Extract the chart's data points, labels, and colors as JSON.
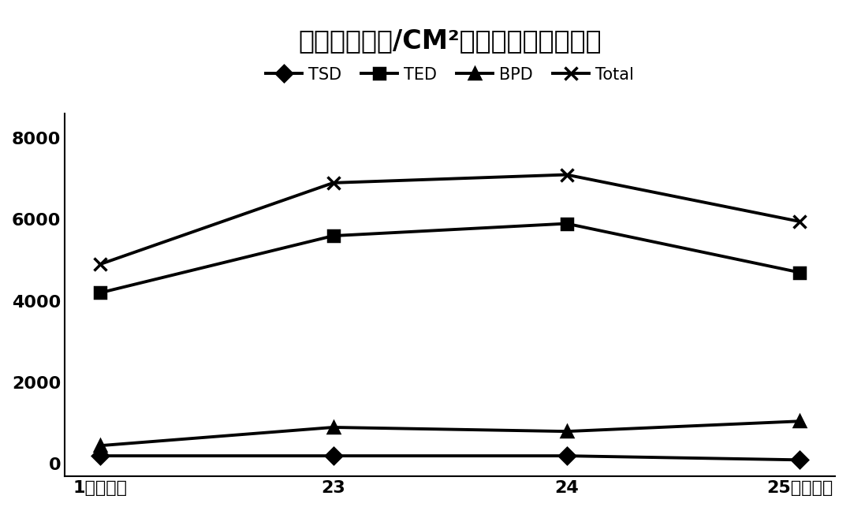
{
  "title": "位错密度（个/CM²）随生长时间的变化",
  "x_labels": [
    "1（头片）",
    "23",
    "24",
    "25（籽晶）"
  ],
  "x_positions": [
    0,
    1,
    2,
    3
  ],
  "series": {
    "TSD": [
      200,
      200,
      200,
      100
    ],
    "TED": [
      4200,
      5600,
      5900,
      4700
    ],
    "BPD": [
      450,
      900,
      800,
      1050
    ],
    "Total": [
      4900,
      6900,
      7100,
      5950
    ]
  },
  "line_color": "#000000",
  "markers": {
    "TSD": "D",
    "TED": "s",
    "BPD": "^",
    "Total": "x"
  },
  "marker_sizes": {
    "TSD": 10,
    "TED": 10,
    "BPD": 10,
    "Total": 12
  },
  "ylim": [
    -300,
    8600
  ],
  "yticks": [
    0,
    2000,
    4000,
    6000,
    8000
  ],
  "background_color": "#ffffff",
  "title_fontsize": 24,
  "legend_fontsize": 15,
  "tick_fontsize": 16,
  "linewidth": 2.8,
  "figure_width": 10.78,
  "figure_height": 6.57,
  "dpi": 100
}
